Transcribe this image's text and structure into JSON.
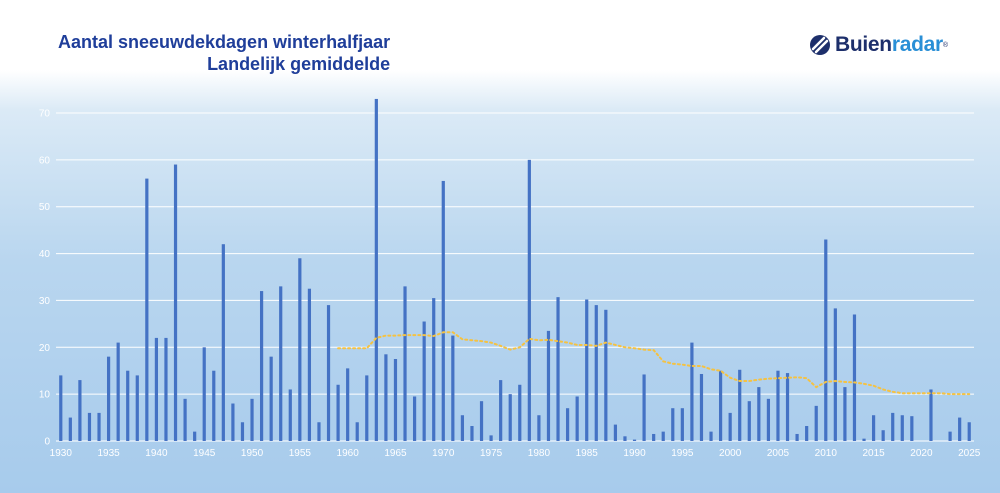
{
  "chart_data": {
    "type": "bar",
    "title": "Aantal sneeuwdekdagen winterhalfjaar",
    "subtitle": "Landelijk gemiddelde",
    "xlabel": "",
    "ylabel": "",
    "ylim": [
      0,
      75
    ],
    "yticks": [
      0,
      10,
      20,
      30,
      40,
      50,
      60,
      70
    ],
    "xticks": [
      1930,
      1935,
      1940,
      1945,
      1950,
      1955,
      1960,
      1965,
      1970,
      1975,
      1980,
      1985,
      1990,
      1995,
      2000,
      2005,
      2010,
      2015,
      2020,
      2025
    ],
    "grid": "horizontal",
    "legend": "none",
    "colors": {
      "bars": "#4472c4",
      "trend": "#f5c242",
      "grid": "#ffffff",
      "title": "#1f3e9a"
    },
    "x": [
      1930,
      1931,
      1932,
      1933,
      1934,
      1935,
      1936,
      1937,
      1938,
      1939,
      1940,
      1941,
      1942,
      1943,
      1944,
      1945,
      1946,
      1947,
      1948,
      1949,
      1950,
      1951,
      1952,
      1953,
      1954,
      1955,
      1956,
      1957,
      1958,
      1959,
      1960,
      1961,
      1962,
      1963,
      1964,
      1965,
      1966,
      1967,
      1968,
      1969,
      1970,
      1971,
      1972,
      1973,
      1974,
      1975,
      1976,
      1977,
      1978,
      1979,
      1980,
      1981,
      1982,
      1983,
      1984,
      1985,
      1986,
      1987,
      1988,
      1989,
      1990,
      1991,
      1992,
      1993,
      1994,
      1995,
      1996,
      1997,
      1998,
      1999,
      2000,
      2001,
      2002,
      2003,
      2004,
      2005,
      2006,
      2007,
      2008,
      2009,
      2010,
      2011,
      2012,
      2013,
      2014,
      2015,
      2016,
      2017,
      2018,
      2019,
      2020,
      2021,
      2022,
      2023,
      2024,
      2025
    ],
    "values": [
      14,
      5,
      13,
      6,
      6,
      18,
      21,
      15,
      14,
      56,
      22,
      22,
      59,
      9,
      2,
      20,
      15,
      42,
      8,
      4,
      9,
      32,
      18,
      33,
      11,
      39,
      32.5,
      4,
      29,
      12,
      15.5,
      4,
      14,
      73,
      18.5,
      17.5,
      33,
      9.5,
      25.5,
      30.5,
      55.5,
      22.5,
      5.5,
      3.2,
      8.5,
      1.2,
      13,
      10,
      12,
      60,
      5.5,
      23.5,
      30.7,
      7,
      9.5,
      30.2,
      29,
      28,
      3.5,
      1,
      0.3,
      14.2,
      1.5,
      2,
      7,
      7,
      21,
      14.3,
      2,
      15,
      6,
      15.2,
      8.5,
      11.5,
      9,
      15,
      14.5,
      1.5,
      3.2,
      7.5,
      43,
      28.3,
      11.5,
      27,
      0.5,
      5.5,
      2.3,
      6,
      5.5,
      5.3,
      0,
      11,
      0,
      2,
      5,
      4
    ],
    "trend": {
      "name": "",
      "x": [
        1959,
        1960,
        1961,
        1962,
        1963,
        1964,
        1965,
        1966,
        1967,
        1968,
        1969,
        1970,
        1971,
        1972,
        1973,
        1974,
        1975,
        1976,
        1977,
        1978,
        1979,
        1980,
        1981,
        1982,
        1983,
        1984,
        1985,
        1986,
        1987,
        1988,
        1989,
        1990,
        1991,
        1992,
        1993,
        1994,
        1995,
        1996,
        1997,
        1998,
        1999,
        2000,
        2001,
        2002,
        2003,
        2004,
        2005,
        2006,
        2007,
        2008,
        2009,
        2010,
        2011,
        2012,
        2013,
        2014,
        2015,
        2016,
        2017,
        2018,
        2019,
        2020,
        2021,
        2022,
        2023,
        2024,
        2025
      ],
      "values": [
        19.8,
        19.8,
        19.8,
        19.8,
        22,
        22.5,
        22.5,
        22.6,
        22.6,
        22.6,
        22.4,
        23.2,
        23.2,
        21.7,
        21.5,
        21.3,
        21,
        20.3,
        19.5,
        20,
        21.8,
        21.5,
        21.6,
        21.3,
        21,
        20.5,
        20.5,
        20.3,
        21,
        20.5,
        20,
        19.8,
        19.5,
        19.4,
        17,
        16.5,
        16.3,
        16,
        16,
        15.3,
        15,
        13.5,
        12.8,
        12.8,
        13.1,
        13.3,
        13.4,
        13.5,
        13.6,
        13.4,
        11.5,
        12.6,
        12.8,
        12.6,
        12.5,
        12.2,
        11.8,
        11,
        10.5,
        10.2,
        10.2,
        10.2,
        10.2,
        10.2,
        10,
        10,
        10
      ]
    }
  },
  "logo": {
    "text_main": "Buien",
    "text_accent": "radar",
    "reg": "®",
    "icon": "buienradar-swirl-icon"
  }
}
